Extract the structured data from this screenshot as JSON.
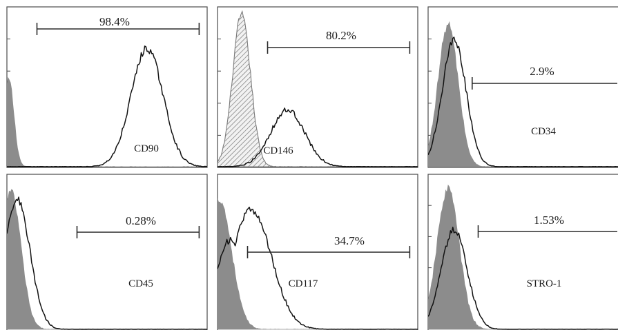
{
  "chart_data": [
    {
      "type": "area",
      "marker": "CD90",
      "gate": {
        "range": [
          0.15,
          0.96
        ],
        "percent": "98.4%"
      },
      "control": {
        "style": "filled",
        "color": "#8c8c8c",
        "peak": 0.01,
        "width": 0.025,
        "height": 0.55
      },
      "sample": {
        "style": "outline",
        "color": "#111111",
        "peak": 0.7,
        "width": 0.08,
        "height": 0.75
      }
    },
    {
      "type": "area",
      "marker": "CD146",
      "gate": {
        "range": [
          0.25,
          0.96
        ],
        "percent": "80.2%"
      },
      "control": {
        "style": "hatched",
        "color": "#7a7a7a",
        "peak": 0.12,
        "width": 0.045,
        "height": 0.96
      },
      "sample": {
        "style": "outline",
        "color": "#111111",
        "peak": 0.35,
        "width": 0.085,
        "height": 0.36
      }
    },
    {
      "type": "area",
      "marker": "CD34",
      "gate": {
        "range": [
          0.22,
          1.05
        ],
        "percent": "2.9%"
      },
      "control": {
        "style": "filled",
        "color": "#8c8c8c",
        "peak": 0.1,
        "width": 0.05,
        "height": 0.9
      },
      "sample": {
        "style": "outline",
        "color": "#111111",
        "peak": 0.13,
        "width": 0.06,
        "height": 0.8
      }
    },
    {
      "type": "area",
      "marker": "CD45",
      "gate": {
        "range": [
          0.35,
          0.96
        ],
        "percent": "0.28%"
      },
      "control": {
        "style": "filled",
        "color": "#8c8c8c",
        "peak": 0.02,
        "width": 0.05,
        "height": 0.9
      },
      "sample": {
        "style": "outline",
        "color": "#111111",
        "peak": 0.05,
        "width": 0.065,
        "height": 0.85
      }
    },
    {
      "type": "area",
      "marker": "CD117",
      "gate": {
        "range": [
          0.15,
          0.96
        ],
        "percent": "34.7%"
      },
      "control": {
        "style": "filled",
        "color": "#8c8c8c",
        "peak": 0.01,
        "width": 0.06,
        "height": 0.85
      },
      "sample": {
        "style": "outline",
        "color": "#111111",
        "peak": 0.17,
        "width": 0.1,
        "height": 0.78,
        "shoulder": {
          "peak": 0.06,
          "width": 0.07,
          "height": 0.58
        }
      }
    },
    {
      "type": "area",
      "marker": "STRO-1",
      "gate": {
        "range": [
          0.25,
          1.05
        ],
        "percent": "1.53%"
      },
      "control": {
        "style": "filled",
        "color": "#8c8c8c",
        "peak": 0.1,
        "width": 0.055,
        "height": 0.92
      },
      "sample": {
        "style": "outline",
        "color": "#111111",
        "peak": 0.13,
        "width": 0.065,
        "height": 0.65
      }
    }
  ]
}
